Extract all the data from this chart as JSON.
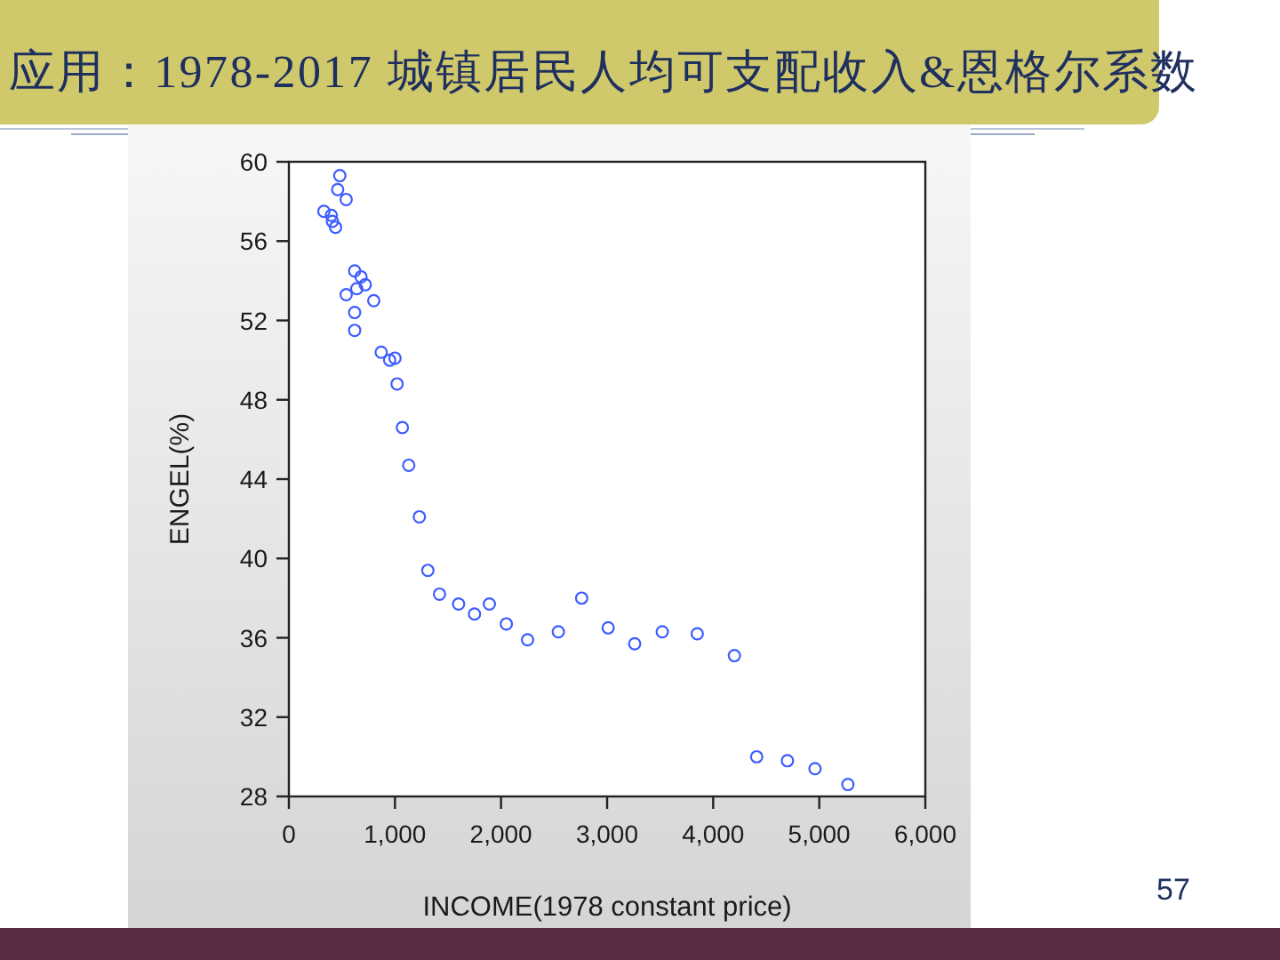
{
  "chart_data": {
    "type": "scatter",
    "title": "应用：1978-2017 城镇居民人均可支配收入&恩格尔系数",
    "xlabel": "INCOME(1978 constant price)",
    "ylabel": "ENGEL(%)",
    "annotations": [
      "57"
    ],
    "x": [
      480,
      460,
      540,
      330,
      400,
      410,
      440,
      620,
      680,
      720,
      640,
      540,
      800,
      620,
      620,
      870,
      950,
      1000,
      1020,
      1070,
      1130,
      1230,
      1310,
      1420,
      1600,
      1750,
      1890,
      2050,
      2250,
      2540,
      2760,
      3010,
      3260,
      3520,
      3850,
      4200,
      4410,
      4700,
      4960,
      5270
    ],
    "values": [
      59.3,
      58.6,
      58.1,
      57.5,
      57.3,
      57.0,
      56.7,
      54.5,
      54.2,
      53.8,
      53.6,
      53.3,
      53.0,
      52.4,
      51.5,
      50.4,
      50.0,
      50.1,
      48.8,
      46.6,
      44.7,
      42.1,
      39.4,
      38.2,
      37.7,
      37.2,
      37.7,
      36.7,
      35.9,
      36.3,
      38.0,
      36.5,
      35.7,
      36.3,
      36.2,
      35.1,
      30.0,
      29.8,
      29.4,
      28.6
    ],
    "color": "#3d5cff",
    "marker": "circle",
    "xlim": [
      0,
      6000
    ],
    "xticks": [
      0,
      {
        "value": 1000,
        "label": "1,000"
      },
      {
        "value": 2000,
        "label": "2,000"
      },
      {
        "value": 3000,
        "label": "3,000"
      },
      {
        "value": 4000,
        "label": "4,000"
      },
      {
        "value": 5000,
        "label": "5,000"
      },
      {
        "value": 6000,
        "label": "6,000"
      }
    ],
    "ylim": [
      28,
      60
    ],
    "yticks": [
      28,
      32,
      36,
      40,
      44,
      48,
      52,
      56,
      60
    ]
  }
}
